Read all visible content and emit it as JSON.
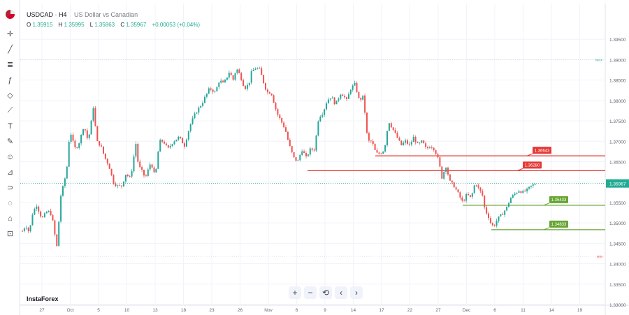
{
  "header": {
    "symbol": "USDCAD · H4",
    "name": "US Dollar vs Canadian",
    "ohlc": [
      {
        "k": "O",
        "v": "1.35915"
      },
      {
        "k": "H",
        "v": "1.35995"
      },
      {
        "k": "L",
        "v": "1.35863"
      },
      {
        "k": "C",
        "v": "1.35967"
      }
    ],
    "change": "+0.00053 (+0.04%)"
  },
  "watermark": "InstaForex",
  "nav": {
    "zoom_in": "+",
    "zoom_out": "−",
    "reset": "⟲",
    "back": "‹",
    "forward": "›"
  },
  "toolbar_icons": [
    "crosshair-icon",
    "trend-line-icon",
    "fib-icon",
    "brush-icon",
    "pattern-icon",
    "measure-icon",
    "text-icon",
    "pen-icon",
    "emoji-icon",
    "ruler-icon",
    "magnet-icon",
    "eye-off-icon",
    "lock-icon",
    "trash-icon"
  ],
  "colors": {
    "up": "#26a69a",
    "down": "#ef5350",
    "resistance": "#e53935",
    "support": "#66a532",
    "price": "#22ab94"
  },
  "chart_data": {
    "type": "candlestick",
    "ylim": [
      1.33,
      1.4
    ],
    "y_ticks": [
      "1.39500",
      "1.39000",
      "1.38500",
      "1.38000",
      "1.37500",
      "1.37000",
      "1.36500",
      "1.36000",
      "1.35500",
      "1.35000",
      "1.34500",
      "1.34000",
      "1.33500",
      "1.33000"
    ],
    "x_ticks": [
      "27",
      "Oct",
      "5",
      "10",
      "13",
      "18",
      "23",
      "26",
      "Nov",
      "6",
      "9",
      "14",
      "17",
      "22",
      "27",
      "Dec",
      "6",
      "11",
      "14",
      "19"
    ],
    "last_price": {
      "label": "1.35967",
      "value": 1.35967
    },
    "max_label": "MAX",
    "min_label": "MIN",
    "levels": [
      {
        "label": "1.36643",
        "value": 1.36643,
        "kind": "resistance"
      },
      {
        "label": "1.36280",
        "value": 1.3628,
        "kind": "resistance"
      },
      {
        "label": "1.35433",
        "value": 1.35433,
        "kind": "support"
      },
      {
        "label": "1.34833",
        "value": 1.34833,
        "kind": "support"
      }
    ],
    "path": [
      [
        0,
        1.348
      ],
      [
        5,
        1.3495
      ],
      [
        10,
        1.3475
      ],
      [
        14,
        1.352
      ],
      [
        20,
        1.3545
      ],
      [
        28,
        1.351
      ],
      [
        36,
        1.353
      ],
      [
        42,
        1.352
      ],
      [
        46,
        1.3475
      ],
      [
        50,
        1.3435
      ],
      [
        54,
        1.356
      ],
      [
        60,
        1.36
      ],
      [
        64,
        1.364
      ],
      [
        68,
        1.373
      ],
      [
        72,
        1.37
      ],
      [
        76,
        1.368
      ],
      [
        82,
        1.37
      ],
      [
        88,
        1.374
      ],
      [
        94,
        1.37
      ],
      [
        98,
        1.374
      ],
      [
        102,
        1.379
      ],
      [
        106,
        1.37
      ],
      [
        112,
        1.369
      ],
      [
        118,
        1.366
      ],
      [
        124,
        1.364
      ],
      [
        130,
        1.36
      ],
      [
        136,
        1.359
      ],
      [
        142,
        1.359
      ],
      [
        148,
        1.362
      ],
      [
        154,
        1.361
      ],
      [
        158,
        1.364
      ],
      [
        162,
        1.37
      ],
      [
        166,
        1.364
      ],
      [
        170,
        1.363
      ],
      [
        176,
        1.361
      ],
      [
        184,
        1.365
      ],
      [
        190,
        1.361
      ],
      [
        196,
        1.37
      ],
      [
        202,
        1.37
      ],
      [
        208,
        1.368
      ],
      [
        216,
        1.37
      ],
      [
        224,
        1.371
      ],
      [
        232,
        1.369
      ],
      [
        240,
        1.374
      ],
      [
        248,
        1.377
      ],
      [
        256,
        1.379
      ],
      [
        262,
        1.381
      ],
      [
        268,
        1.383
      ],
      [
        276,
        1.382
      ],
      [
        282,
        1.385
      ],
      [
        288,
        1.384
      ],
      [
        296,
        1.387
      ],
      [
        302,
        1.385
      ],
      [
        306,
        1.388
      ],
      [
        312,
        1.386
      ],
      [
        318,
        1.383
      ],
      [
        324,
        1.384
      ],
      [
        328,
        1.387
      ],
      [
        334,
        1.388
      ],
      [
        340,
        1.3875
      ],
      [
        344,
        1.385
      ],
      [
        350,
        1.382
      ],
      [
        356,
        1.382
      ],
      [
        364,
        1.377
      ],
      [
        370,
        1.375
      ],
      [
        376,
        1.373
      ],
      [
        382,
        1.369
      ],
      [
        388,
        1.366
      ],
      [
        394,
        1.365
      ],
      [
        400,
        1.368
      ],
      [
        406,
        1.366
      ],
      [
        412,
        1.368
      ],
      [
        418,
        1.368
      ],
      [
        424,
        1.376
      ],
      [
        430,
        1.377
      ],
      [
        436,
        1.38
      ],
      [
        442,
        1.381
      ],
      [
        448,
        1.379
      ],
      [
        456,
        1.382
      ],
      [
        464,
        1.38
      ],
      [
        470,
        1.383
      ],
      [
        476,
        1.384
      ],
      [
        482,
        1.38
      ],
      [
        488,
        1.381
      ],
      [
        494,
        1.37
      ],
      [
        500,
        1.37
      ],
      [
        506,
        1.367
      ],
      [
        512,
        1.367
      ],
      [
        518,
        1.368
      ],
      [
        524,
        1.375
      ],
      [
        530,
        1.373
      ],
      [
        536,
        1.371
      ],
      [
        542,
        1.369
      ],
      [
        548,
        1.37
      ],
      [
        554,
        1.369
      ],
      [
        560,
        1.371
      ],
      [
        566,
        1.369
      ],
      [
        572,
        1.37
      ],
      [
        578,
        1.368
      ],
      [
        584,
        1.369
      ],
      [
        590,
        1.368
      ],
      [
        596,
        1.365
      ],
      [
        600,
        1.361
      ],
      [
        606,
        1.364
      ],
      [
        612,
        1.36
      ],
      [
        618,
        1.359
      ],
      [
        624,
        1.357
      ],
      [
        630,
        1.355
      ],
      [
        636,
        1.357
      ],
      [
        642,
        1.356
      ],
      [
        648,
        1.36
      ],
      [
        654,
        1.358
      ],
      [
        658,
        1.357
      ],
      [
        662,
        1.353
      ],
      [
        666,
        1.352
      ],
      [
        670,
        1.35
      ],
      [
        674,
        1.349
      ],
      [
        680,
        1.351
      ],
      [
        686,
        1.352
      ],
      [
        690,
        1.353
      ],
      [
        694,
        1.354
      ],
      [
        698,
        1.356
      ],
      [
        704,
        1.357
      ],
      [
        710,
        1.358
      ],
      [
        716,
        1.3575
      ],
      [
        722,
        1.358
      ],
      [
        728,
        1.359
      ],
      [
        734,
        1.3596
      ]
    ]
  }
}
